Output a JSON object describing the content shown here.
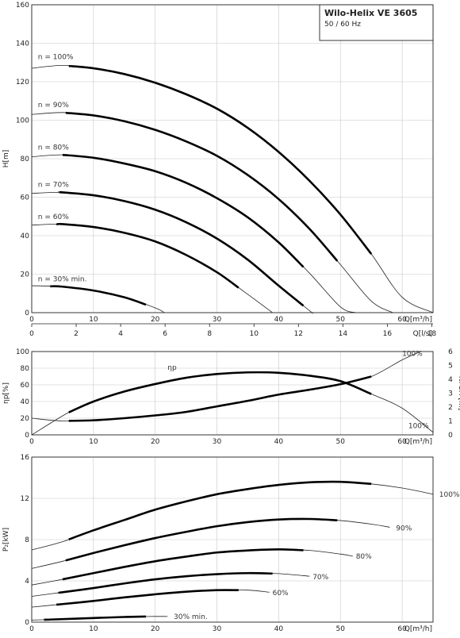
{
  "header": {
    "title": "Wilo-Helix VE 3605",
    "subtitle": "50 / 60 Hz"
  },
  "chart_data": [
    {
      "type": "line",
      "id": "head",
      "ylabel": "H[m]",
      "xlabel": "Q[m³/h]",
      "xlabel_secondary": "Q[l/s]",
      "xlim": [
        0,
        65
      ],
      "ylim": [
        0,
        160
      ],
      "xticks": [
        0,
        10,
        20,
        30,
        40,
        50,
        60
      ],
      "yticks": [
        0,
        20,
        40,
        60,
        80,
        100,
        120,
        140,
        160
      ],
      "secondary_xticks": [
        0,
        2,
        4,
        6,
        8,
        10,
        12,
        14,
        16,
        18
      ],
      "grid": true,
      "series": [
        {
          "name": "n = 100%",
          "x": [
            0,
            5,
            10,
            15,
            20,
            25,
            30,
            35,
            40,
            45,
            50,
            55,
            60,
            65
          ],
          "y": [
            127,
            128.5,
            127,
            124,
            119.5,
            113.5,
            106,
            96,
            83.5,
            68.5,
            51,
            30.5,
            8,
            0
          ],
          "thick_range": [
            6,
            55
          ],
          "label_at": [
            1,
            133
          ]
        },
        {
          "name": "n = 90%",
          "x": [
            0,
            5,
            10,
            15,
            20,
            25,
            30,
            35,
            40,
            45,
            50,
            55,
            58.5
          ],
          "y": [
            103,
            104,
            102.5,
            99.5,
            95,
            89,
            81.5,
            71.5,
            59,
            43.5,
            25,
            6,
            0
          ],
          "thick_range": [
            5.5,
            49.5
          ],
          "label_at": [
            1,
            108
          ]
        },
        {
          "name": "n = 80%",
          "x": [
            0,
            5,
            10,
            15,
            20,
            25,
            30,
            35,
            40,
            45,
            50,
            52.5
          ],
          "y": [
            81,
            82,
            80.5,
            77.5,
            73.5,
            67.5,
            59.5,
            49.5,
            36.5,
            20.5,
            3,
            0
          ],
          "thick_range": [
            5,
            44
          ],
          "label_at": [
            1,
            86
          ]
        },
        {
          "name": "n = 70%",
          "x": [
            0,
            5,
            10,
            15,
            20,
            25,
            30,
            35,
            40,
            45,
            45.5
          ],
          "y": [
            62,
            62.5,
            61,
            58,
            53.5,
            47,
            38.5,
            27.5,
            14,
            1,
            0
          ],
          "thick_range": [
            4.5,
            44
          ],
          "label_at": [
            1,
            66.5
          ]
        },
        {
          "name": "n = 60%",
          "x": [
            0,
            5,
            10,
            15,
            20,
            25,
            30,
            35,
            39
          ],
          "y": [
            45.5,
            46,
            44.5,
            41.5,
            37,
            30,
            21,
            9.5,
            0
          ],
          "thick_range": [
            4,
            33.5
          ],
          "label_at": [
            1,
            50
          ]
        },
        {
          "name": "n = 30% min.",
          "x": [
            0,
            5,
            10,
            15,
            20,
            21.5
          ],
          "y": [
            14,
            13.5,
            11.5,
            8,
            2.5,
            0
          ],
          "thick_range": [
            3,
            18.5
          ],
          "label_at": [
            1,
            17.5
          ]
        }
      ]
    },
    {
      "type": "line",
      "id": "efficiency_npsh",
      "ylabel": "ηp[%]",
      "ylabel_right": "NPSH [m]",
      "xlabel": "Q[m³/h]",
      "xlim": [
        0,
        65
      ],
      "ylim": [
        0,
        100
      ],
      "ylim_right": [
        0,
        6
      ],
      "xticks": [
        0,
        10,
        20,
        30,
        40,
        50,
        60
      ],
      "yticks": [
        0,
        20,
        40,
        60,
        80,
        100
      ],
      "yticks_right": [
        0,
        1,
        2,
        3,
        4,
        5,
        6
      ],
      "grid": true,
      "series": [
        {
          "name": "ηp",
          "x": [
            0,
            6,
            10,
            15,
            20,
            25,
            30,
            35,
            40,
            45,
            50,
            55,
            60,
            65
          ],
          "y": [
            0,
            27,
            40,
            52,
            61,
            68.5,
            73,
            75,
            74.5,
            71,
            64.5,
            49,
            32,
            3
          ],
          "thick_range": [
            6,
            55
          ],
          "label_at": [
            22,
            81
          ]
        },
        {
          "name": "NPSH",
          "axis": "right",
          "x": [
            0,
            5,
            10,
            15,
            20,
            25,
            30,
            35,
            40,
            45,
            50,
            55,
            60,
            63
          ],
          "y": [
            1.2,
            1.0,
            1.05,
            1.2,
            1.4,
            1.65,
            2.05,
            2.45,
            2.9,
            3.25,
            3.65,
            4.2,
            5.4,
            6
          ],
          "thick_range": [
            6,
            55
          ],
          "label_at": [
            36,
            40
          ]
        }
      ],
      "annotations": [
        {
          "text": "100%",
          "at": [
            60,
            95
          ]
        },
        {
          "text": "100%",
          "at": [
            61,
            8
          ]
        }
      ]
    },
    {
      "type": "line",
      "id": "power",
      "ylabel": "P₂[kW]",
      "xlabel": "Q[m³/h]",
      "xlim": [
        0,
        65
      ],
      "ylim": [
        0,
        16
      ],
      "xticks": [
        0,
        10,
        20,
        30,
        40,
        50,
        60
      ],
      "yticks": [
        0,
        4,
        8,
        12,
        16
      ],
      "grid": true,
      "series": [
        {
          "name": "100%",
          "x": [
            0,
            5,
            10,
            15,
            20,
            25,
            30,
            35,
            40,
            45,
            50,
            55,
            60,
            65
          ],
          "y": [
            7,
            7.8,
            8.9,
            9.9,
            10.9,
            11.7,
            12.4,
            12.9,
            13.3,
            13.55,
            13.6,
            13.4,
            13,
            12.4
          ],
          "thick_range": [
            6,
            55
          ],
          "label_at": [
            66,
            12.4
          ]
        },
        {
          "name": "90%",
          "x": [
            0,
            5,
            10,
            15,
            20,
            25,
            30,
            35,
            40,
            45,
            50,
            55,
            58
          ],
          "y": [
            5.2,
            5.9,
            6.7,
            7.45,
            8.15,
            8.75,
            9.3,
            9.7,
            9.95,
            10.0,
            9.85,
            9.5,
            9.2
          ],
          "thick_range": [
            5.5,
            49.5
          ],
          "label_at": [
            59,
            9.1
          ]
        },
        {
          "name": "80%",
          "x": [
            0,
            5,
            10,
            15,
            20,
            25,
            30,
            35,
            40,
            45,
            50,
            52
          ],
          "y": [
            3.6,
            4.15,
            4.75,
            5.35,
            5.9,
            6.35,
            6.75,
            6.95,
            7.05,
            6.95,
            6.6,
            6.4
          ],
          "thick_range": [
            5,
            44
          ],
          "label_at": [
            52.5,
            6.4
          ]
        },
        {
          "name": "70%",
          "x": [
            0,
            5,
            10,
            15,
            20,
            25,
            30,
            35,
            40,
            45
          ],
          "y": [
            2.5,
            2.9,
            3.3,
            3.75,
            4.15,
            4.45,
            4.65,
            4.75,
            4.7,
            4.45
          ],
          "thick_range": [
            4.5,
            39
          ],
          "label_at": [
            45.5,
            4.4
          ]
        },
        {
          "name": "60%",
          "x": [
            0,
            5,
            10,
            15,
            20,
            25,
            30,
            35,
            38.5
          ],
          "y": [
            1.45,
            1.75,
            2.05,
            2.4,
            2.7,
            2.95,
            3.1,
            3.1,
            2.9
          ],
          "thick_range": [
            4,
            33.5
          ],
          "label_at": [
            39,
            2.85
          ]
        },
        {
          "name": "30% min.",
          "x": [
            0,
            3,
            10,
            15,
            19,
            22
          ],
          "y": [
            0.2,
            0.25,
            0.4,
            0.5,
            0.55,
            0.55
          ],
          "thick_range": [
            2,
            18.5
          ],
          "label_at": [
            23,
            0.55
          ]
        }
      ]
    }
  ]
}
